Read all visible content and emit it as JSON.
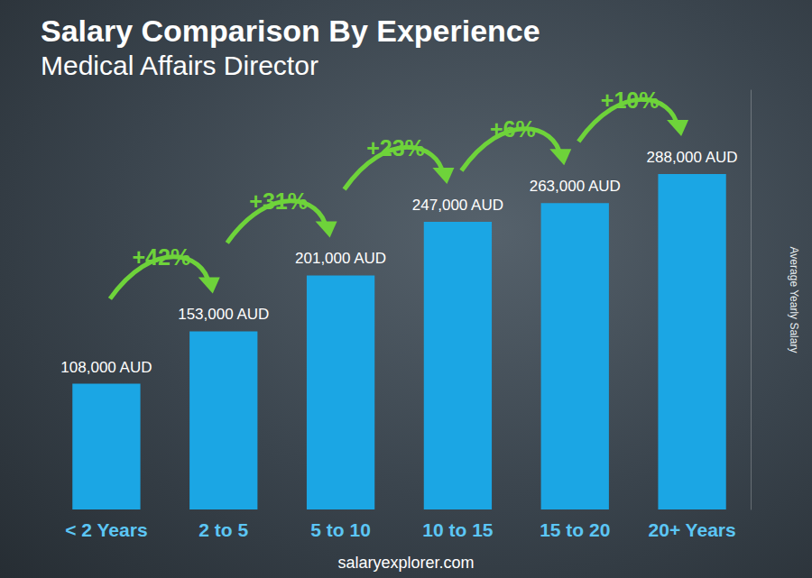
{
  "chart_data": {
    "type": "bar",
    "title": "Salary Comparison By Experience",
    "subtitle": "Medical Affairs Director",
    "categories": [
      "< 2 Years",
      "2 to 5",
      "5 to 10",
      "10 to 15",
      "15 to 20",
      "20+ Years"
    ],
    "values": [
      108000,
      153000,
      201000,
      247000,
      263000,
      288000
    ],
    "value_labels": [
      "108,000 AUD",
      "153,000 AUD",
      "201,000 AUD",
      "247,000 AUD",
      "263,000 AUD",
      "288,000 AUD"
    ],
    "data_labels": true,
    "annotations": [
      "+42%",
      "+31%",
      "+23%",
      "+6%",
      "+10%"
    ],
    "y_label": "Average Yearly Salary",
    "source": "salaryexplorer.com",
    "color": "#1ba6e4",
    "ylim": [
      0,
      360000
    ],
    "tick_labels": "x",
    "grid": false
  }
}
